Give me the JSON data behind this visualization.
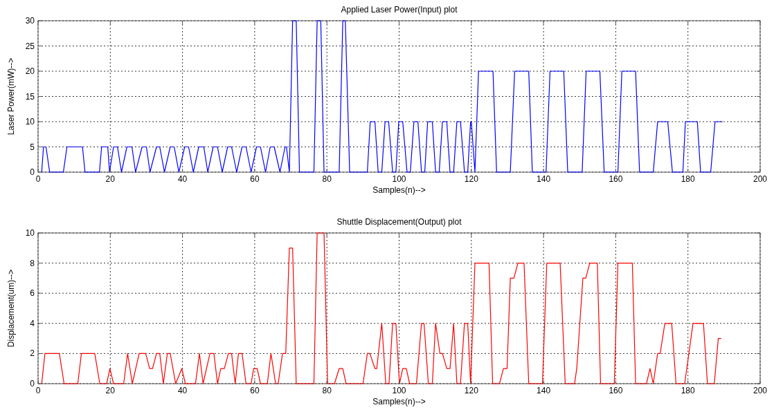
{
  "chart_data": [
    {
      "type": "line",
      "title": "Applied Laser Power(Input) plot",
      "xlabel": "Samples(n)-->",
      "ylabel": "Laser Power(mW)-->",
      "xlim": [
        0,
        200
      ],
      "xticks": [
        0,
        20,
        40,
        60,
        80,
        100,
        120,
        140,
        160,
        180,
        200
      ],
      "ylim": [
        0,
        30
      ],
      "yticks": [
        0,
        5,
        10,
        15,
        20,
        25,
        30
      ],
      "grid": true,
      "series": [
        {
          "color": "#0000ff",
          "x": [
            1,
            1.5,
            2.2,
            3.2,
            7,
            8,
            12.3,
            13,
            17,
            17.6,
            19.3,
            19.8,
            20.9,
            22,
            23.1,
            24.6,
            26,
            27,
            28.8,
            30,
            31,
            32.8,
            33.7,
            35,
            36.6,
            37.7,
            39,
            40.6,
            41.7,
            43,
            44.5,
            45.9,
            47,
            48.5,
            49.7,
            51,
            52.5,
            53.6,
            55,
            56.5,
            57.6,
            59,
            60.5,
            61.6,
            63,
            64.3,
            65.4,
            67,
            68.4,
            68.8,
            69.6,
            70.5,
            71.5,
            72.4,
            76.4,
            77.3,
            78.3,
            79.2,
            83.4,
            84.4,
            85.1,
            86.3,
            91.2,
            92,
            93.3,
            94.2,
            95.2,
            96.1,
            97.1,
            98.2,
            99.1,
            99.9,
            101,
            102.2,
            103.1,
            104.1,
            105.2,
            106.2,
            107.1,
            107.9,
            109.2,
            110.1,
            111.1,
            112,
            113.2,
            114.1,
            115.1,
            116,
            117,
            118.1,
            119,
            119.8,
            120,
            121,
            122,
            126,
            127,
            130.8,
            132,
            135.9,
            136.9,
            140.7,
            141.8,
            145.6,
            146.7,
            150.7,
            151.8,
            155.6,
            156.8,
            160.6,
            161.7,
            165.5,
            166.6,
            170.4,
            171.6,
            174.4,
            175.7,
            178.6,
            179.3,
            182.6,
            183.5,
            186.3,
            187.5,
            189.6
          ],
          "values": [
            0,
            5,
            5,
            0,
            0,
            5,
            5,
            0,
            0,
            5,
            5,
            0,
            5,
            5,
            0,
            5,
            5,
            0,
            5,
            5,
            0,
            5,
            5,
            0,
            5,
            5,
            0,
            5,
            5,
            0,
            5,
            5,
            0,
            5,
            5,
            0,
            5,
            5,
            0,
            5,
            5,
            0,
            5,
            5,
            0,
            5,
            5,
            0,
            5,
            5,
            0,
            30,
            30,
            0,
            0,
            30,
            30,
            0,
            0,
            30,
            30,
            0,
            0,
            10,
            10,
            0,
            0,
            10,
            10,
            0,
            0,
            10,
            10,
            0,
            0,
            10,
            10,
            0,
            0,
            10,
            10,
            0,
            0,
            10,
            10,
            0,
            0,
            10,
            10,
            0,
            0,
            10,
            10,
            0,
            20,
            20,
            0,
            0,
            20,
            20,
            0,
            0,
            20,
            20,
            0,
            0,
            20,
            20,
            0,
            0,
            20,
            20,
            0,
            0,
            10,
            10,
            0,
            0,
            10,
            10,
            0,
            0,
            10,
            10
          ]
        }
      ]
    },
    {
      "type": "line",
      "title": "Shuttle Displacement(Output) plot",
      "xlabel": "Samples(n)-->",
      "ylabel": "Displacement(um)-->",
      "xlim": [
        0,
        200
      ],
      "xticks": [
        0,
        20,
        40,
        60,
        80,
        100,
        120,
        140,
        160,
        180,
        200
      ],
      "ylim": [
        0,
        10
      ],
      "yticks": [
        0,
        2,
        4,
        6,
        8,
        10
      ],
      "grid": true,
      "series": [
        {
          "color": "#ff0000",
          "x": [
            1,
            1.9,
            5.9,
            7.2,
            11,
            12,
            15.7,
            17.1,
            19,
            19.9,
            20.9,
            23.7,
            24.8,
            26.1,
            28,
            29.8,
            30.9,
            31.7,
            32.8,
            33.7,
            34.7,
            35.8,
            36.6,
            38.1,
            39.8,
            40.8,
            43.6,
            44.7,
            45.7,
            47.6,
            48.7,
            49.7,
            50.6,
            51.6,
            52.7,
            53.6,
            54.6,
            55.5,
            56.5,
            57.6,
            59,
            59.7,
            60.7,
            61.6,
            63.5,
            64.5,
            65.8,
            66.5,
            67.7,
            68.6,
            69.6,
            70.5,
            71.5,
            76.4,
            77.3,
            79.2,
            80.2,
            82.1,
            83.4,
            84.4,
            85.3,
            90,
            91.2,
            91.9,
            93.3,
            93.8,
            95.2,
            96.3,
            97.2,
            98.2,
            99.1,
            100.1,
            101,
            102,
            102.9,
            104.8,
            106.2,
            106.9,
            108.1,
            109.2,
            110.1,
            111.3,
            112,
            113.2,
            114.1,
            115.1,
            116,
            117,
            118.1,
            119,
            119.8,
            121,
            124.9,
            125.9,
            127.8,
            128.9,
            129.9,
            130.8,
            131.8,
            132.9,
            134.6,
            135.9,
            139.7,
            140.9,
            144.6,
            146,
            148.6,
            149.2,
            150.9,
            151.7,
            152.8,
            154.9,
            155.8,
            159.6,
            160.6,
            164.6,
            165.5,
            168.5,
            169.5,
            170.4,
            171.6,
            172.3,
            173.6,
            175.5,
            176.7,
            179.1,
            181.4,
            184.3,
            185.4,
            187.3,
            188.4,
            189.2
          ],
          "values": [
            0,
            2,
            2,
            0,
            0,
            2,
            2,
            0,
            0,
            1,
            0,
            0,
            2,
            0,
            2,
            2,
            1,
            1,
            2,
            2,
            0,
            2,
            2,
            0,
            1,
            0,
            0,
            2,
            0,
            2,
            2,
            0,
            1,
            1,
            2,
            2,
            0,
            2,
            2,
            0,
            0,
            1,
            1,
            0,
            0,
            2,
            0,
            0,
            2,
            2,
            9,
            9,
            0,
            0,
            10,
            10,
            0,
            0,
            1,
            1,
            0,
            0,
            2,
            2,
            1,
            1,
            4,
            0,
            0,
            4,
            4,
            0,
            1,
            1,
            0,
            0,
            4,
            4,
            0,
            0,
            4,
            2,
            2,
            1,
            1,
            4,
            0,
            0,
            4,
            4,
            0,
            8,
            8,
            0,
            0,
            1,
            1,
            7,
            7,
            8,
            8,
            0,
            0,
            8,
            8,
            0,
            0,
            1,
            7,
            7,
            8,
            8,
            0,
            0,
            8,
            8,
            0,
            0,
            1,
            0,
            2,
            2,
            4,
            4,
            0,
            0,
            4,
            4,
            0,
            0,
            3,
            3
          ]
        }
      ]
    }
  ]
}
